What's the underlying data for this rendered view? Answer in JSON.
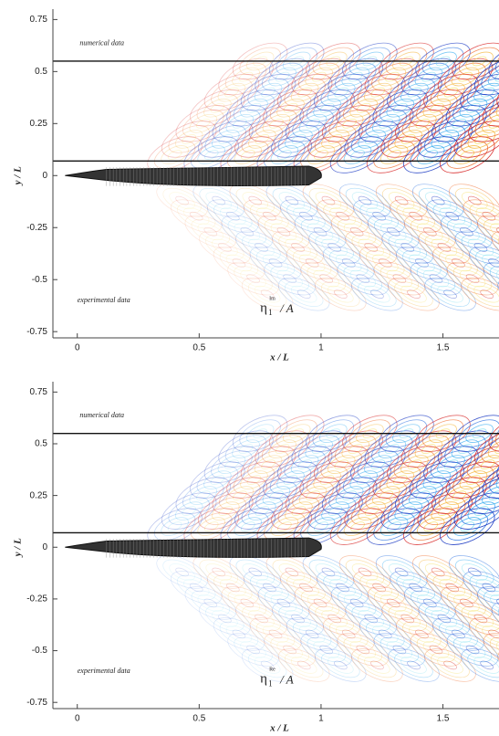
{
  "chart_data": [
    {
      "type": "contour",
      "xlabel": "x / L",
      "ylabel": "y / L",
      "xlim": [
        -0.1,
        1.73
      ],
      "ylim": [
        -0.78,
        0.8
      ],
      "xticks": [
        0,
        0.5,
        1,
        1.5
      ],
      "yticks": [
        -0.75,
        -0.5,
        -0.25,
        0,
        0.25,
        0.5,
        0.75
      ],
      "hlines": [
        0.55,
        0.07
      ],
      "top_label": "numerical data",
      "bottom_label": "experimental data",
      "annotation": {
        "base": "η",
        "sub": "1",
        "sup": "Im",
        "tail": "/ A"
      }
    },
    {
      "type": "contour",
      "xlabel": "x / L",
      "ylabel": "y / L",
      "xlim": [
        -0.1,
        1.73
      ],
      "ylim": [
        -0.78,
        0.8
      ],
      "xticks": [
        0,
        0.5,
        1,
        1.5
      ],
      "yticks": [
        -0.75,
        -0.5,
        -0.25,
        0,
        0.25,
        0.5,
        0.75
      ],
      "hlines": [
        0.55,
        0.07
      ],
      "top_label": "numerical data",
      "bottom_label": "experimental data",
      "annotation": {
        "base": "η",
        "sub": "1",
        "sup": "Re",
        "tail": "/ A"
      }
    }
  ]
}
